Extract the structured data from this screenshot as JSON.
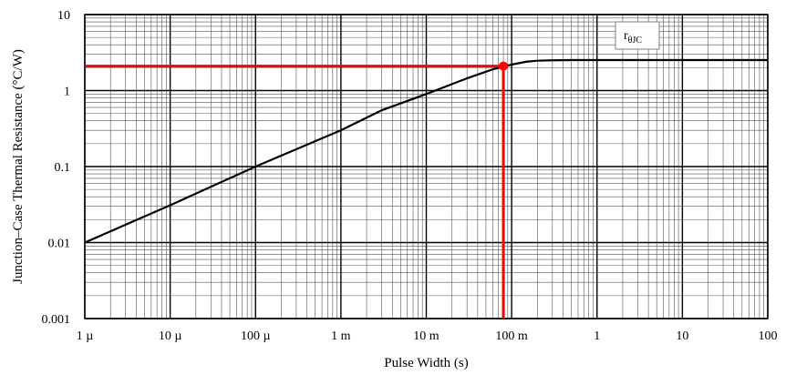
{
  "chart_data": {
    "type": "line",
    "title": "",
    "xlabel": "Pulse Width (s)",
    "ylabel": "Junction–Case Thermal Resistance (°C/W)",
    "x_scale": "log",
    "y_scale": "log",
    "xlim": [
      1e-06,
      100
    ],
    "ylim": [
      0.001,
      10
    ],
    "grid": true,
    "x_ticks": [
      {
        "value": 1e-06,
        "label": "1 µ"
      },
      {
        "value": 1e-05,
        "label": "10 µ"
      },
      {
        "value": 0.0001,
        "label": "100 µ"
      },
      {
        "value": 0.001,
        "label": "1 m"
      },
      {
        "value": 0.01,
        "label": "10 m"
      },
      {
        "value": 0.1,
        "label": "100 m"
      },
      {
        "value": 1,
        "label": "1"
      },
      {
        "value": 10,
        "label": "10"
      },
      {
        "value": 100,
        "label": "100"
      }
    ],
    "y_ticks": [
      {
        "value": 0.001,
        "label": "0.001"
      },
      {
        "value": 0.01,
        "label": "0.01"
      },
      {
        "value": 0.1,
        "label": "0.1"
      },
      {
        "value": 1,
        "label": "1"
      },
      {
        "value": 10,
        "label": "10"
      }
    ],
    "series": [
      {
        "name": "rθJC",
        "color": "#000000",
        "x": [
          1e-06,
          1e-05,
          0.0001,
          0.001,
          0.003,
          0.01,
          0.03,
          0.06,
          0.1,
          0.15,
          0.2,
          0.3,
          0.5,
          1,
          10,
          100
        ],
        "y": [
          0.01,
          0.031,
          0.1,
          0.3,
          0.55,
          0.9,
          1.45,
          1.9,
          2.2,
          2.4,
          2.47,
          2.5,
          2.52,
          2.52,
          2.52,
          2.52
        ]
      }
    ],
    "marker": {
      "x": 0.08,
      "y": 2.1,
      "color": "#ff0000"
    },
    "legend": {
      "label_main": "r",
      "label_sub": "θJC",
      "position": "top-right"
    }
  }
}
